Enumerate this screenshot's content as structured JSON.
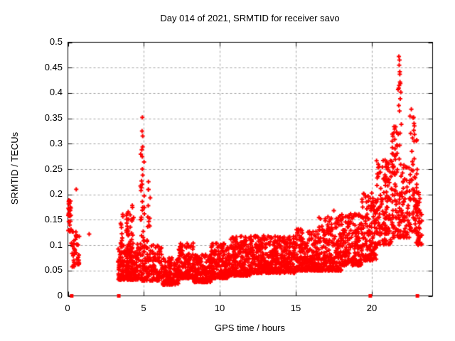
{
  "figure": {
    "title": "Day 014 of 2021, SRMTID for receiver savo"
  },
  "chart_data": {
    "type": "scatter",
    "title": "Day 014 of 2021, SRMTID for receiver savo",
    "xlabel": "GPS time / hours",
    "ylabel": "SRMTID / TECUs",
    "xlim": [
      0,
      24
    ],
    "ylim": [
      0,
      0.5
    ],
    "xtick_values": [
      0,
      5,
      10,
      15,
      20
    ],
    "xtick_labels": [
      "0",
      "5",
      "10",
      "15",
      "20"
    ],
    "ytick_values": [
      0,
      0.05,
      0.1,
      0.15,
      0.2,
      0.25,
      0.3,
      0.35,
      0.4,
      0.45,
      0.5
    ],
    "ytick_labels": [
      "0",
      "0.05",
      "0.1",
      "0.15",
      "0.2",
      "0.25",
      "0.3",
      "0.35",
      "0.4",
      "0.45",
      "0.5"
    ],
    "grid": true,
    "legend": "none",
    "background": "#ffffff",
    "grid_color": "#9e9e9e",
    "axis_color": "#000000",
    "marker_shape": "plus",
    "marker_color": "#ff0000",
    "zero_line_markers": {
      "shape": "filled-square",
      "color": "#ff0000",
      "y": 0,
      "x": [
        0.25,
        3.35,
        19.9,
        23.0
      ]
    },
    "point_bands_desc": "Each band: [x_start_h, x_end_h, n_points, y_min_TECU, y_max_TECU, skew] summarizing the dense scatter read from the plot",
    "point_bands": [
      [
        0.02,
        0.22,
        28,
        0.125,
        0.197,
        1.0
      ],
      [
        0.23,
        0.75,
        42,
        0.057,
        0.127,
        1.3
      ],
      [
        3.3,
        4.6,
        230,
        0.032,
        0.105,
        2.0
      ],
      [
        3.45,
        3.62,
        8,
        0.1,
        0.165,
        1.2
      ],
      [
        3.82,
        3.98,
        16,
        0.1,
        0.215,
        1.2
      ],
      [
        4.1,
        4.35,
        12,
        0.1,
        0.19,
        1.2
      ],
      [
        4.72,
        5.05,
        26,
        0.1,
        0.3,
        1.3
      ],
      [
        5.2,
        5.45,
        12,
        0.1,
        0.21,
        1.3
      ],
      [
        4.6,
        6.2,
        170,
        0.03,
        0.1,
        1.9
      ],
      [
        6.2,
        7.3,
        150,
        0.022,
        0.075,
        1.7
      ],
      [
        7.3,
        8.3,
        150,
        0.035,
        0.105,
        1.9
      ],
      [
        8.3,
        9.4,
        150,
        0.027,
        0.082,
        1.7
      ],
      [
        9.4,
        10.5,
        170,
        0.035,
        0.105,
        1.8
      ],
      [
        10.5,
        12.0,
        230,
        0.04,
        0.118,
        1.8
      ],
      [
        12.0,
        13.5,
        230,
        0.045,
        0.122,
        1.8
      ],
      [
        13.5,
        15.0,
        230,
        0.045,
        0.118,
        1.8
      ],
      [
        15.0,
        16.5,
        230,
        0.05,
        0.133,
        1.8
      ],
      [
        16.5,
        18.0,
        210,
        0.05,
        0.158,
        1.9
      ],
      [
        18.0,
        19.3,
        180,
        0.06,
        0.163,
        1.7
      ],
      [
        19.3,
        20.3,
        140,
        0.07,
        0.205,
        1.5
      ],
      [
        20.3,
        21.3,
        130,
        0.1,
        0.272,
        1.4
      ],
      [
        21.3,
        22.0,
        95,
        0.115,
        0.335,
        1.5
      ],
      [
        21.7,
        21.95,
        12,
        0.3,
        0.45,
        1.0
      ],
      [
        22.0,
        22.5,
        55,
        0.115,
        0.26,
        1.4
      ],
      [
        22.5,
        23.0,
        60,
        0.125,
        0.355,
        1.3
      ],
      [
        22.9,
        23.3,
        45,
        0.1,
        0.215,
        1.4
      ]
    ],
    "outlier_points": [
      [
        0.55,
        0.21
      ],
      [
        1.4,
        0.122
      ],
      [
        4.9,
        0.352
      ],
      [
        4.88,
        0.325
      ],
      [
        4.92,
        0.315
      ],
      [
        4.86,
        0.288
      ],
      [
        4.9,
        0.25
      ],
      [
        5.3,
        0.225
      ],
      [
        17.5,
        0.168
      ],
      [
        21.78,
        0.472
      ],
      [
        21.82,
        0.465
      ],
      [
        21.8,
        0.455
      ],
      [
        21.84,
        0.437
      ],
      [
        21.8,
        0.415
      ],
      [
        22.6,
        0.368
      ],
      [
        22.75,
        0.352
      ],
      [
        22.8,
        0.335
      ],
      [
        22.78,
        0.305
      ]
    ]
  }
}
